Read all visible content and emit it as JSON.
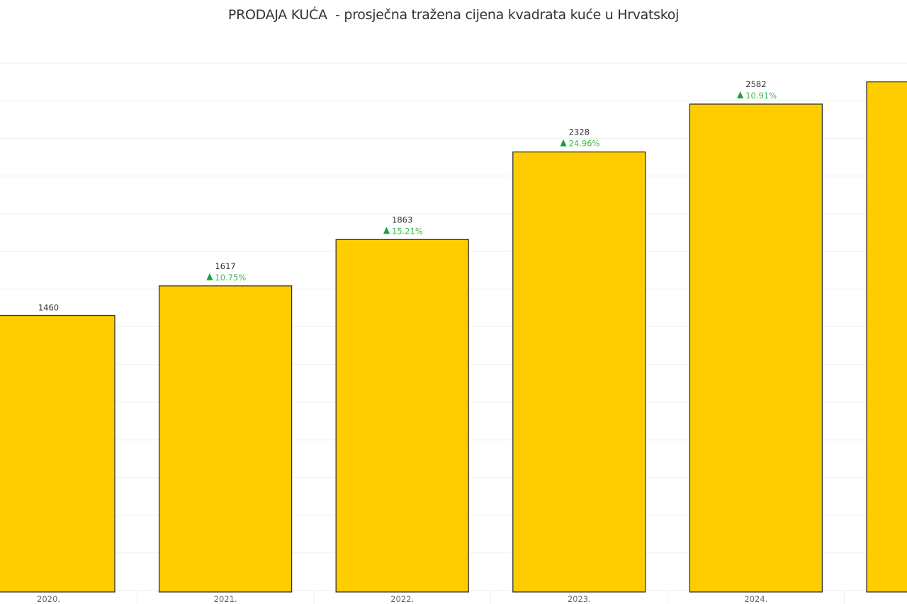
{
  "chart_data": {
    "type": "bar",
    "title": "PRODAJA KUĆA  - prosječna tražena cijena kvadrata kuće u Hrvatskoj",
    "xlabel": "",
    "ylabel": "",
    "ylim": [
      0,
      2800
    ],
    "grid": true,
    "grid_step": 200,
    "bar_color": "#ffcc00",
    "bar_border": "#333333",
    "up_color": "#3cb94a",
    "categories": [
      "2020.",
      "2021.",
      "2022.",
      "2023.",
      "2024.",
      ""
    ],
    "values": [
      1460,
      1617,
      1863,
      2328,
      2582,
      2700
    ],
    "value_labels": [
      "1460",
      "1617",
      "1863",
      "2328",
      "2582",
      ""
    ],
    "change_labels": [
      "",
      "10.75%",
      "15.21%",
      "24.96%",
      "10.91%",
      ""
    ],
    "change_icon": "up-triangle-icon"
  }
}
